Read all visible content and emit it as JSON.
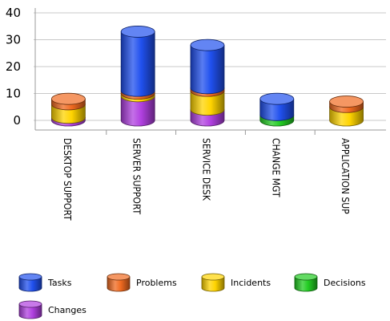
{
  "chart_data": {
    "type": "bar",
    "stacked": true,
    "shape": "3d-cylinder",
    "title": "",
    "xlabel": "",
    "ylabel": "",
    "ylim": [
      0,
      40
    ],
    "yticks": [
      0,
      10,
      20,
      30,
      40
    ],
    "grid": true,
    "legend_position": "bottom",
    "categories": [
      "DESKTOP SUPPORT",
      "SERVER SUPPORT",
      "SERVICE DESK",
      "CHANGE MGT",
      "APPLICATION SUP"
    ],
    "series": [
      {
        "name": "Changes",
        "color": "#b040e0",
        "values": [
          1,
          9,
          4,
          0,
          0
        ]
      },
      {
        "name": "Decisions",
        "color": "#22cc22",
        "values": [
          0,
          0,
          0,
          2,
          0
        ]
      },
      {
        "name": "Incidents",
        "color": "#ffd400",
        "values": [
          5,
          1,
          7,
          0,
          5
        ]
      },
      {
        "name": "Problems",
        "color": "#f06a20",
        "values": [
          2,
          1,
          1,
          0,
          2
        ]
      },
      {
        "name": "Tasks",
        "color": "#2050ee",
        "values": [
          0,
          22,
          16,
          6,
          0
        ]
      }
    ],
    "legend_order": [
      "Tasks",
      "Problems",
      "Incidents",
      "Decisions",
      "Changes"
    ]
  }
}
